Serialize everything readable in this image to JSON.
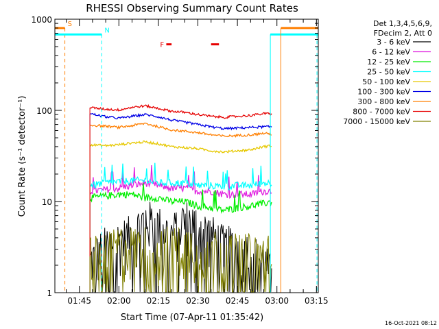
{
  "chart_data": {
    "type": "line",
    "title": "RHESSI Observing Summary Count Rates",
    "xlabel": "Start Time (07-Apr-11 01:35:42)",
    "ylabel": "Count Rate (s⁻¹ detector⁻¹)",
    "footer": "16-Oct-2021 08:12",
    "y_scale": "log",
    "ylim": [
      1,
      1000
    ],
    "xlim_minutes": [
      35.7,
      135.7
    ],
    "y_ticks": [
      {
        "value": 1,
        "label": "1"
      },
      {
        "value": 10,
        "label": "10"
      },
      {
        "value": 100,
        "label": "100"
      },
      {
        "value": 1000,
        "label": "1000"
      }
    ],
    "x_ticks": [
      {
        "value": 45,
        "label": "01:45"
      },
      {
        "value": 60,
        "label": "02:00"
      },
      {
        "value": 75,
        "label": "02:15"
      },
      {
        "value": 90,
        "label": "02:30"
      },
      {
        "value": 105,
        "label": "02:45"
      },
      {
        "value": 120,
        "label": "03:00"
      },
      {
        "value": 135,
        "label": "03:15"
      }
    ],
    "data_start_min": 49,
    "data_end_min": 118,
    "legend_header": [
      "Det 1,3,4,5,6,9,",
      "FDecim 2, Att 0"
    ],
    "legend_position": "right",
    "series": [
      {
        "name": "3 - 6 keV",
        "color": "#000000",
        "style": "noisy",
        "points": [
          [
            49,
            2
          ],
          [
            55,
            3
          ],
          [
            60,
            3.5
          ],
          [
            65,
            4
          ],
          [
            70,
            6
          ],
          [
            75,
            5
          ],
          [
            80,
            4
          ],
          [
            85,
            6
          ],
          [
            90,
            5
          ],
          [
            95,
            4
          ],
          [
            100,
            3
          ],
          [
            105,
            3
          ],
          [
            110,
            2.5
          ],
          [
            115,
            2
          ],
          [
            118,
            1.5
          ]
        ]
      },
      {
        "name": "6 - 12 keV",
        "color": "#e020e0",
        "points": [
          [
            49,
            13
          ],
          [
            55,
            13.5
          ],
          [
            60,
            14
          ],
          [
            65,
            15
          ],
          [
            70,
            16
          ],
          [
            75,
            15
          ],
          [
            80,
            14
          ],
          [
            85,
            14
          ],
          [
            90,
            13
          ],
          [
            95,
            13
          ],
          [
            100,
            12
          ],
          [
            105,
            12
          ],
          [
            110,
            12
          ],
          [
            115,
            13
          ],
          [
            118,
            13
          ]
        ]
      },
      {
        "name": "12 - 25 keV",
        "color": "#00ee00",
        "points": [
          [
            49,
            11
          ],
          [
            55,
            11.5
          ],
          [
            60,
            12
          ],
          [
            65,
            12
          ],
          [
            70,
            11
          ],
          [
            75,
            11
          ],
          [
            80,
            10
          ],
          [
            85,
            10
          ],
          [
            90,
            9
          ],
          [
            95,
            8.5
          ],
          [
            100,
            8
          ],
          [
            105,
            8.5
          ],
          [
            110,
            9
          ],
          [
            115,
            9.5
          ],
          [
            118,
            10
          ]
        ]
      },
      {
        "name": "25 - 50 keV",
        "color": "#00ffff",
        "points": [
          [
            49,
            15
          ],
          [
            55,
            16
          ],
          [
            60,
            16.5
          ],
          [
            65,
            17
          ],
          [
            70,
            17
          ],
          [
            75,
            16
          ],
          [
            80,
            16
          ],
          [
            85,
            16
          ],
          [
            90,
            15
          ],
          [
            95,
            15
          ],
          [
            100,
            14.5
          ],
          [
            105,
            15
          ],
          [
            110,
            15
          ],
          [
            115,
            16
          ],
          [
            118,
            16
          ]
        ]
      },
      {
        "name": "50 - 100 keV",
        "color": "#e6c800",
        "points": [
          [
            49,
            42
          ],
          [
            55,
            41
          ],
          [
            60,
            42
          ],
          [
            65,
            44
          ],
          [
            70,
            45
          ],
          [
            75,
            43
          ],
          [
            80,
            40
          ],
          [
            85,
            39
          ],
          [
            90,
            38
          ],
          [
            95,
            36
          ],
          [
            100,
            35
          ],
          [
            105,
            36
          ],
          [
            110,
            37
          ],
          [
            115,
            40
          ],
          [
            118,
            41
          ]
        ]
      },
      {
        "name": "100 - 300 keV",
        "color": "#0000e6",
        "points": [
          [
            49,
            92
          ],
          [
            55,
            85
          ],
          [
            60,
            82
          ],
          [
            65,
            86
          ],
          [
            70,
            90
          ],
          [
            75,
            85
          ],
          [
            80,
            78
          ],
          [
            85,
            74
          ],
          [
            90,
            70
          ],
          [
            95,
            66
          ],
          [
            100,
            63
          ],
          [
            105,
            64
          ],
          [
            110,
            65
          ],
          [
            115,
            66
          ],
          [
            118,
            66
          ]
        ]
      },
      {
        "name": "300 - 800 keV",
        "color": "#ff7f00",
        "points": [
          [
            49,
            69
          ],
          [
            55,
            67
          ],
          [
            60,
            65
          ],
          [
            65,
            68
          ],
          [
            70,
            72
          ],
          [
            75,
            66
          ],
          [
            80,
            61
          ],
          [
            85,
            59
          ],
          [
            90,
            57
          ],
          [
            95,
            54
          ],
          [
            100,
            52
          ],
          [
            105,
            53
          ],
          [
            110,
            54
          ],
          [
            115,
            56
          ],
          [
            118,
            55
          ]
        ]
      },
      {
        "name": "800 - 7000 keV",
        "color": "#e60000",
        "points": [
          [
            49,
            107
          ],
          [
            55,
            103
          ],
          [
            60,
            101
          ],
          [
            65,
            108
          ],
          [
            70,
            112
          ],
          [
            75,
            105
          ],
          [
            80,
            98
          ],
          [
            85,
            95
          ],
          [
            90,
            90
          ],
          [
            95,
            86
          ],
          [
            100,
            84
          ],
          [
            105,
            86
          ],
          [
            110,
            88
          ],
          [
            115,
            92
          ],
          [
            118,
            92
          ]
        ]
      },
      {
        "name": "7000 - 15000 keV",
        "color": "#808000",
        "style": "noisy",
        "points": [
          [
            49,
            2.5
          ],
          [
            55,
            2.5
          ],
          [
            60,
            3
          ],
          [
            65,
            3
          ],
          [
            70,
            3
          ],
          [
            75,
            3
          ],
          [
            80,
            3
          ],
          [
            85,
            3
          ],
          [
            90,
            3
          ],
          [
            95,
            3
          ],
          [
            100,
            2.5
          ],
          [
            105,
            2.5
          ],
          [
            110,
            2.5
          ],
          [
            115,
            2.5
          ],
          [
            118,
            2.5
          ]
        ]
      }
    ],
    "markers": [
      {
        "label": "S",
        "color": "#ff7f00",
        "bar": [
          35.7,
          39.5
        ],
        "bar_value": 800,
        "dashed_x": 39.5
      },
      {
        "label": "N",
        "color": "#00ffff",
        "bar": [
          35.7,
          53.5
        ],
        "bar_value": 680,
        "dashed_x": 53.5,
        "solid_x": 35.7
      },
      {
        "label": "F",
        "color": "#e60000",
        "bar_segments": [
          [
            78,
            80
          ],
          [
            95,
            98
          ]
        ],
        "bar_value": 530
      },
      {
        "label": "",
        "color": "#00ffff",
        "bar": [
          117.5,
          135.7
        ],
        "bar_value": 680,
        "solid_x": 117.5,
        "dashed_x": 135.2
      },
      {
        "label": "",
        "color": "#ff7f00",
        "bar": [
          121.5,
          135.7
        ],
        "bar_value": 800,
        "solid_x": 121.5
      }
    ]
  }
}
